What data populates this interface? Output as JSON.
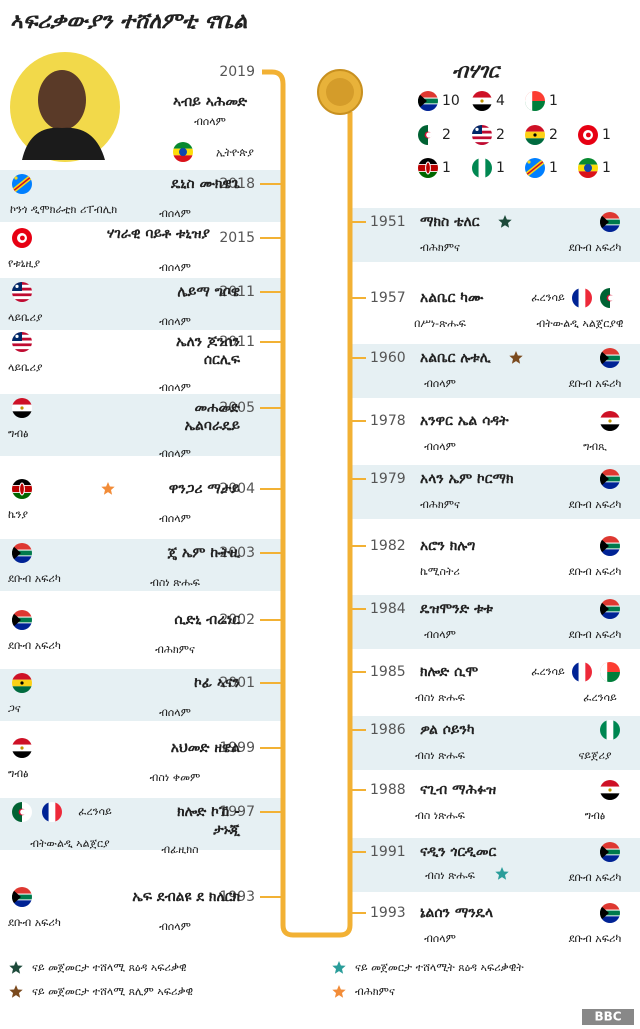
{
  "title": "ኣፍሪቃውያን ተሸለምቲ ኖቤል",
  "featured": {
    "year": "2019",
    "name": "ኣብይ ኣሕመድ",
    "prize": "ብሰላም",
    "country": "ኢትዮጵያ"
  },
  "left": [
    {
      "year": "2018",
      "name": "ዴኒስ ሙክዌጌ",
      "country": "ኮንጎ ዲሞክራቲክ ሪፐብሊክ",
      "prize": "ብሰላም"
    },
    {
      "year": "2015",
      "name": "ሃገራዊ ባይቶ ቱኒዝያ",
      "country": "የቱኒዚያ",
      "prize": "ብሰላም"
    },
    {
      "year": "2011",
      "name": "ሌይማ ግቦዌ",
      "country": "ላይቤሪያ",
      "prize": "ብሰላም"
    },
    {
      "year": "2011",
      "name": [
        "ኤለን ጆንሰን",
        "ሰርሊፍ"
      ],
      "country": "ላይቤሪያ",
      "prize": "ብሰላም"
    },
    {
      "year": "2005",
      "name": [
        "መሐመድ",
        "ኤልባራዴይ"
      ],
      "country": "ግብፅ",
      "prize": "ብሰላም"
    },
    {
      "year": "2004",
      "name": "ዋንጋሪ ማታይ",
      "country": "ኬንያ",
      "prize": "ብሰላም",
      "star_color": "#f28c38"
    },
    {
      "year": "2003",
      "name": "ጄ ኤም ኩትዚ",
      "country": "ደቡብ አፍሪካ",
      "prize": "ብስነ ጽሑፍ"
    },
    {
      "year": "2002",
      "name": "ሲድኒ ብሬነር",
      "country": "ደቡብ አፍሪካ",
      "prize": "ብሕክምና"
    },
    {
      "year": "2001",
      "name": "ኮፊ ኣናን",
      "country": "ጋና",
      "prize": "ብሰላም"
    },
    {
      "year": "1999",
      "name": "አህመድ ዘዌል",
      "country": "ግብፅ",
      "prize": "ብስነ ቀመም"
    },
    {
      "year": "1997",
      "name": [
        "ክሎድ ኮኸ -",
        "ታኑጂ"
      ],
      "country": "ፈረንሳይ",
      "origin": "ብትውልዲ ኣልጀርያ",
      "prize": "ብፊዚክስ"
    },
    {
      "year": "1993",
      "name": "ኤፍ ደብልዩ ደ ክለርክ",
      "country": "ደቡብ አፍሪካ",
      "prize": "ብሰላም"
    }
  ],
  "right": [
    {
      "year": "1951",
      "name": "ማክስ ቴለር",
      "prize": "ብሕክምና",
      "country": "ደቡብ አፍሪካ",
      "star_color": "#1d4a3a"
    },
    {
      "year": "1957",
      "name": "አልቤር ካሙ",
      "prize": "በሥነ-ጽሑፍ",
      "country": "ፈረንሳይ",
      "origin": "ብትውልዲ ኣልጀርያዊ"
    },
    {
      "year": "1960",
      "name": "አልቤር ሉቱሊ",
      "prize": "ብሰላም",
      "country": "ደቡብ አፍሪካ",
      "star_color": "#7a4a1e"
    },
    {
      "year": "1978",
      "name": "አንዋር ኤል ሳዳት",
      "prize": "ብሰላም",
      "country": "ግብጺ"
    },
    {
      "year": "1979",
      "name": "አላን ኤም ኮርማክ",
      "prize": "ብሕክምና",
      "country": "ደቡብ አፍሪካ"
    },
    {
      "year": "1982",
      "name": "አሮን ክሉግ",
      "prize": "ኬሚስትሪ",
      "country": "ደቡብ አፍሪካ"
    },
    {
      "year": "1984",
      "name": "ዴዝሞንድ ቱቱ",
      "prize": "ብሰላም",
      "country": "ደቡብ አፍሪካ"
    },
    {
      "year": "1985",
      "name": "ክሎድ ሲሞ",
      "prize": "ብስነ ጽሑፍ",
      "country": "ፈረንሳይ",
      "origin": "ፈረንሳይ"
    },
    {
      "year": "1986",
      "name": "ዎል ሶይንካ",
      "prize": "ብስነ ጽሑፍ",
      "country": "ናይጀሪያ"
    },
    {
      "year": "1988",
      "name": "ናጊብ ማሕፉዝ",
      "prize": "ብስ ነጽሑፍ",
      "country": "ግብፅ"
    },
    {
      "year": "1991",
      "name": "ናዲን ጎርዲመር",
      "prize": "ብስነ ጽሑፍ",
      "country": "ደቡብ አፍሪካ",
      "star_color": "#2a9d9a"
    },
    {
      "year": "1993",
      "name": "ኔልሰን ማንዴላ",
      "prize": "ብሰላም",
      "country": "ደቡብ አፍሪካ"
    }
  ],
  "by_country": {
    "title": "ብሃገር",
    "counts": [
      10,
      4,
      1,
      2,
      2,
      2,
      1,
      1,
      1,
      1,
      1
    ]
  },
  "legend": [
    {
      "label": "ናይ መጀመርታ ተሸላሚ ጸዕዳ ኣፍሪቃዊ",
      "color": "#1d4a3a"
    },
    {
      "label": "ናይ መጀመርታ ተሸላሚት ጸዕዳ ኣፍሪቃዊት",
      "color": "#2a9d9a"
    },
    {
      "label": "ናይ መጀመርታ ተሸላሚ ጸሊም ኣፍሪቃዊ",
      "color": "#7a4a1e"
    },
    {
      "label": "ብሕክምና",
      "color": "#f28c38"
    }
  ],
  "footer": "BBC"
}
